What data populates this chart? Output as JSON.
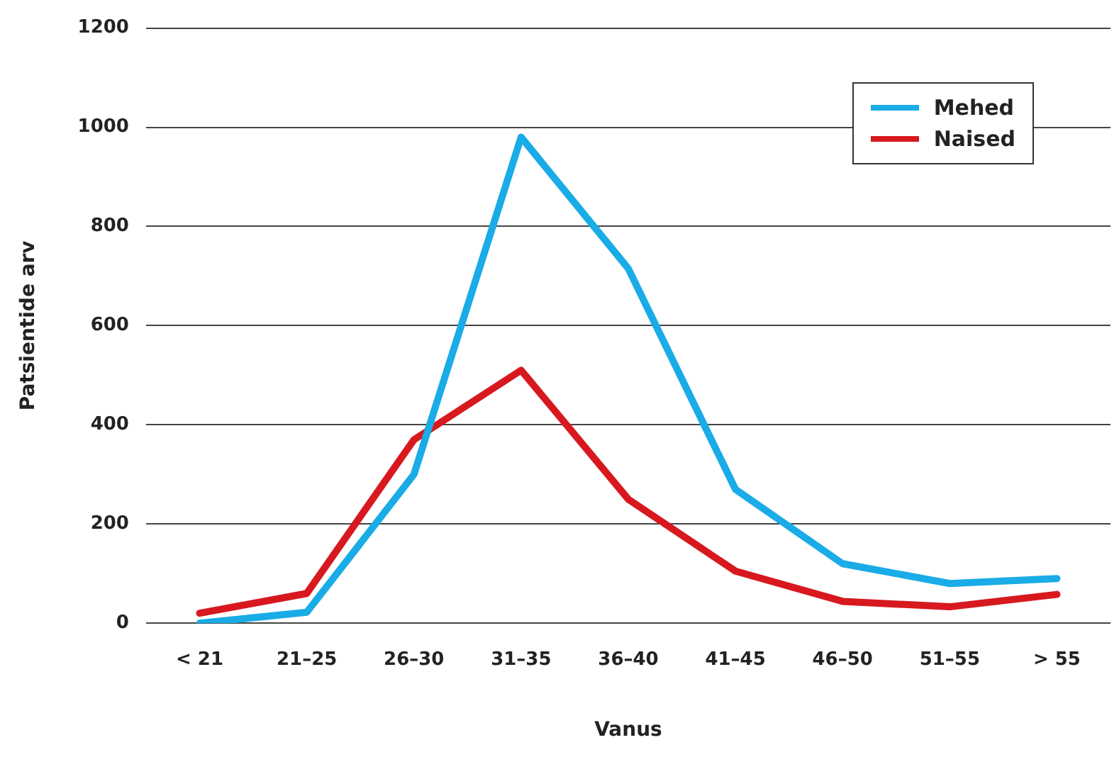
{
  "chart_data": {
    "type": "line",
    "xlabel": "Vanus",
    "ylabel": "Patsientide arv",
    "categories": [
      "< 21",
      "21–25",
      "26–30",
      "31–35",
      "36–40",
      "41–45",
      "46–50",
      "51–55",
      "> 55"
    ],
    "series": [
      {
        "name": "Mehed",
        "color": "#19ace6",
        "values": [
          0,
          22,
          300,
          980,
          715,
          270,
          120,
          80,
          90
        ]
      },
      {
        "name": "Naised",
        "color": "#d7191f",
        "values": [
          20,
          60,
          370,
          510,
          250,
          105,
          44,
          33,
          58
        ]
      }
    ],
    "ylim": [
      0,
      1200
    ],
    "yticks": [
      0,
      200,
      400,
      600,
      800,
      1000,
      1200
    ],
    "grid": "y",
    "legend": "top right",
    "marker": "none",
    "line_style": "solid"
  }
}
